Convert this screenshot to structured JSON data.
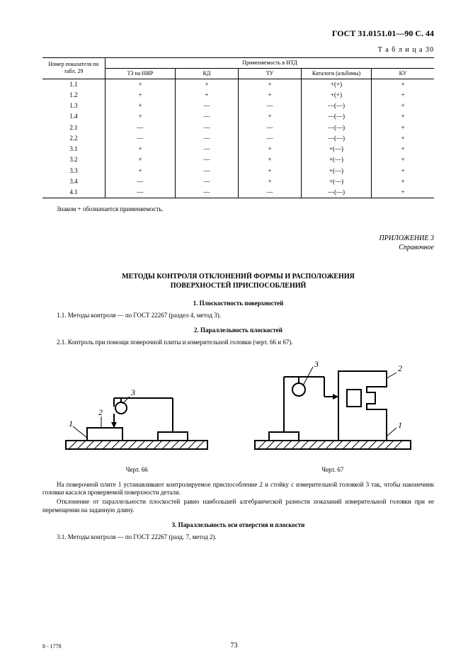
{
  "doc_header": "ГОСТ 31.0151.01—90 С. 44",
  "table_label": "Т а б л и ц а  30",
  "table": {
    "header_group": "Применяемость в НТД",
    "col0": "Номер показателя по табл. 29",
    "cols": [
      "ТЗ на НИР",
      "КД",
      "ТУ",
      "Каталоги (альбомы)",
      "КУ"
    ],
    "rows": [
      {
        "n": "1.1",
        "c": [
          "+",
          "+",
          "+",
          "+(+)",
          "+"
        ]
      },
      {
        "n": "1.2",
        "c": [
          "+",
          "+",
          "+",
          "+(+)",
          "+"
        ]
      },
      {
        "n": "1.3",
        "c": [
          "+",
          "—",
          "—",
          "—(—)",
          "+"
        ]
      },
      {
        "n": "1.4",
        "c": [
          "+",
          "—",
          "+",
          "—(—)",
          "+"
        ]
      },
      {
        "n": "2.1",
        "c": [
          "—",
          "—",
          "—",
          "—(—)",
          "+"
        ]
      },
      {
        "n": "2.2",
        "c": [
          "—",
          "—",
          "—",
          "—(—)",
          "+"
        ]
      },
      {
        "n": "3.1",
        "c": [
          "+",
          "—",
          "+",
          "+(—)",
          "+"
        ]
      },
      {
        "n": "3.2",
        "c": [
          "+",
          "—",
          "+",
          "+(—)",
          "+"
        ]
      },
      {
        "n": "3.3",
        "c": [
          "+",
          "—",
          "+",
          "+(—)",
          "+"
        ]
      },
      {
        "n": "3.4",
        "c": [
          "—",
          "—",
          "+",
          "+(—)",
          "+"
        ]
      },
      {
        "n": "4.1",
        "c": [
          "—",
          "—",
          "—",
          "—(—)",
          "+"
        ]
      }
    ]
  },
  "table_note": "Знаком + обозначается применяемость.",
  "appendix_label": "ПРИЛОЖЕНИЕ 3",
  "appendix_sub": "Справочное",
  "title_l1": "МЕТОДЫ КОНТРОЛЯ ОТКЛОНЕНИЙ ФОРМЫ И РАСПОЛОЖЕНИЯ",
  "title_l2": "ПОВЕРХНОСТЕЙ ПРИСПОСОБЛЕНИЙ",
  "sec1_h": "1. Плоскостность поверхностей",
  "sec1_p": "1.1. Методы контроля — по ГОСТ 22267 (раздел 4, метод 3).",
  "sec2_h": "2. Параллельность плоскостей",
  "sec2_p": "2.1. Контроль при помощи поверочной плиты и измерительной головки (черт. 66 и 67).",
  "fig66_caption": "Черт. 66",
  "fig67_caption": "Черт. 67",
  "para_after_1": "На поверочной плите 1 устанавливают контролируемое приспособление 2 и стойку с измерительной головкой 3 так, чтобы наконечник головки касался проверяемой поверхности детали.",
  "para_after_2": "Отклонение от параллельности плоскостей равно наибольшей алгебраической разности показаний измерительной головки при ее перемещении на заданную длину.",
  "sec3_h": "3. Параллельность оси отверстия и плоскости",
  "sec3_p": "3.1. Методы контроля — по ГОСТ 22267 (разд. 7, метод 2).",
  "footer_left": "8 - 1778",
  "page_number": "73",
  "figures": {
    "stroke": "#000000",
    "fill_none": "none",
    "hatch_spacing": 7,
    "line_width_thin": 1,
    "line_width_thick": 2
  }
}
